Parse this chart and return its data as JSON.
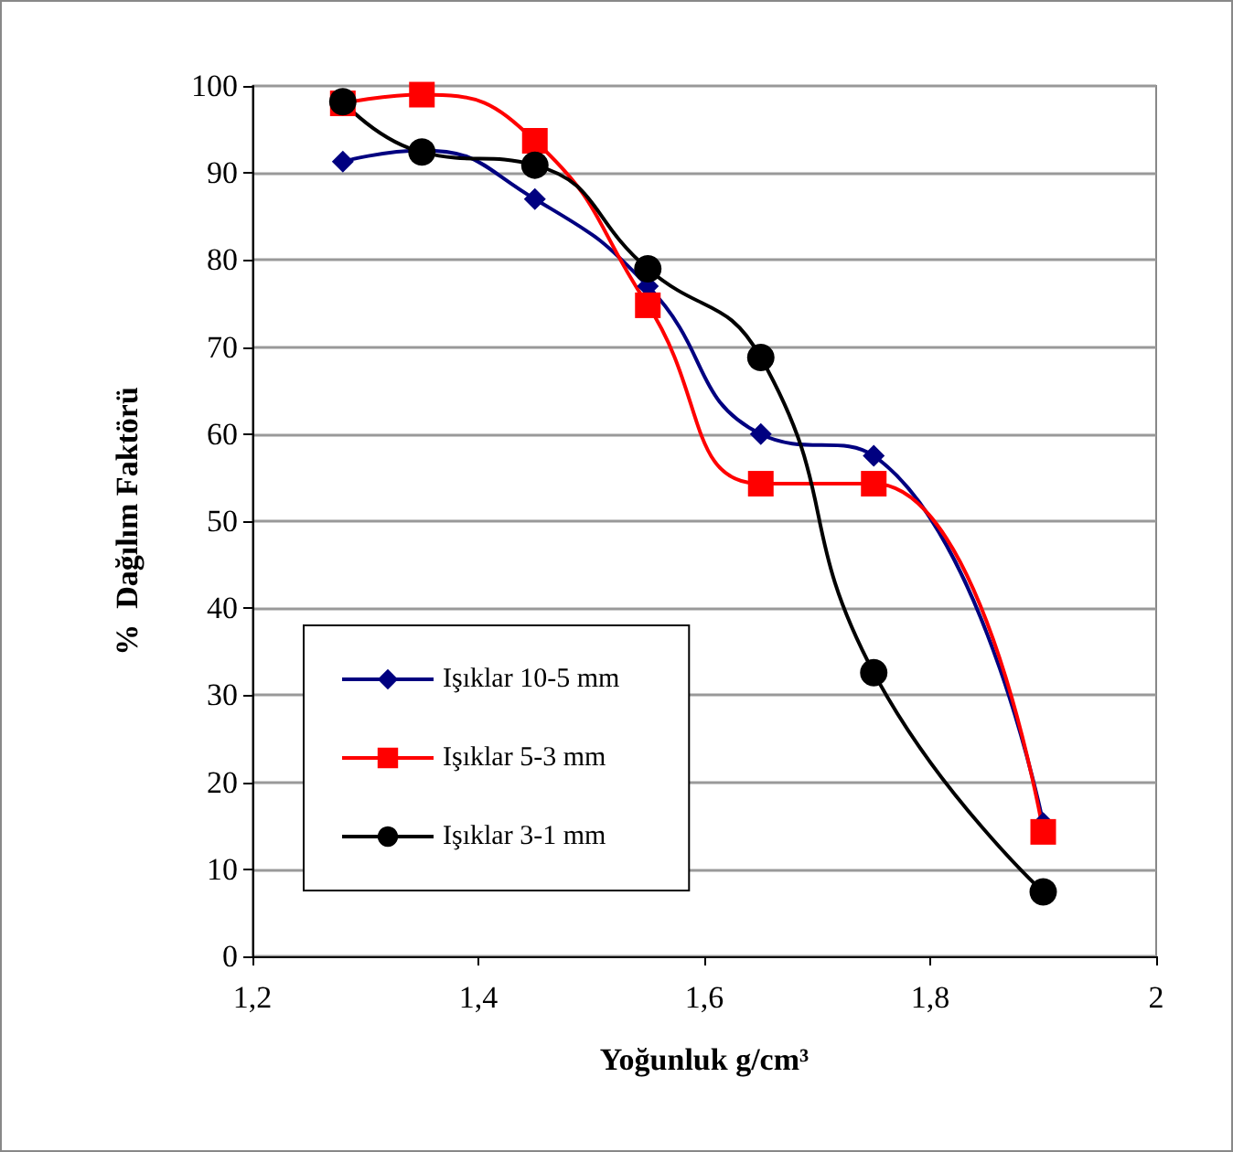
{
  "chart_data": {
    "type": "line",
    "xlabel": "Yoğunluk g/cm³",
    "ylabel": "%  Dağılım Faktörü",
    "x": [
      1.28,
      1.35,
      1.45,
      1.55,
      1.65,
      1.75,
      1.9
    ],
    "series": [
      {
        "name": "Işıklar 10-5 mm",
        "color": "#000080",
        "marker": "diamond",
        "values": [
          91.3,
          92.6,
          87,
          77,
          60,
          57.5,
          15.3
        ]
      },
      {
        "name": "Işıklar 5-3 mm",
        "color": "#ff0000",
        "marker": "square",
        "values": [
          98,
          99,
          93.7,
          74.8,
          54.3,
          54.3,
          14.3
        ]
      },
      {
        "name": "Işıklar 3-1 mm",
        "color": "#000000",
        "marker": "circle",
        "values": [
          98.2,
          92.4,
          90.9,
          79,
          68.8,
          32.6,
          7.4
        ]
      }
    ],
    "xlim": [
      1.2,
      2
    ],
    "xticks": [
      {
        "value": 1.2,
        "label": "1,2"
      },
      {
        "value": 1.4,
        "label": "1,4"
      },
      {
        "value": 1.6,
        "label": "1,6"
      },
      {
        "value": 1.8,
        "label": "1,8"
      },
      2
    ],
    "ylim": [
      0,
      100
    ],
    "yticks": [
      0,
      10,
      20,
      30,
      40,
      50,
      60,
      70,
      80,
      90,
      100
    ],
    "grid": "y",
    "legend": "bottom left",
    "line_style": "solid"
  }
}
